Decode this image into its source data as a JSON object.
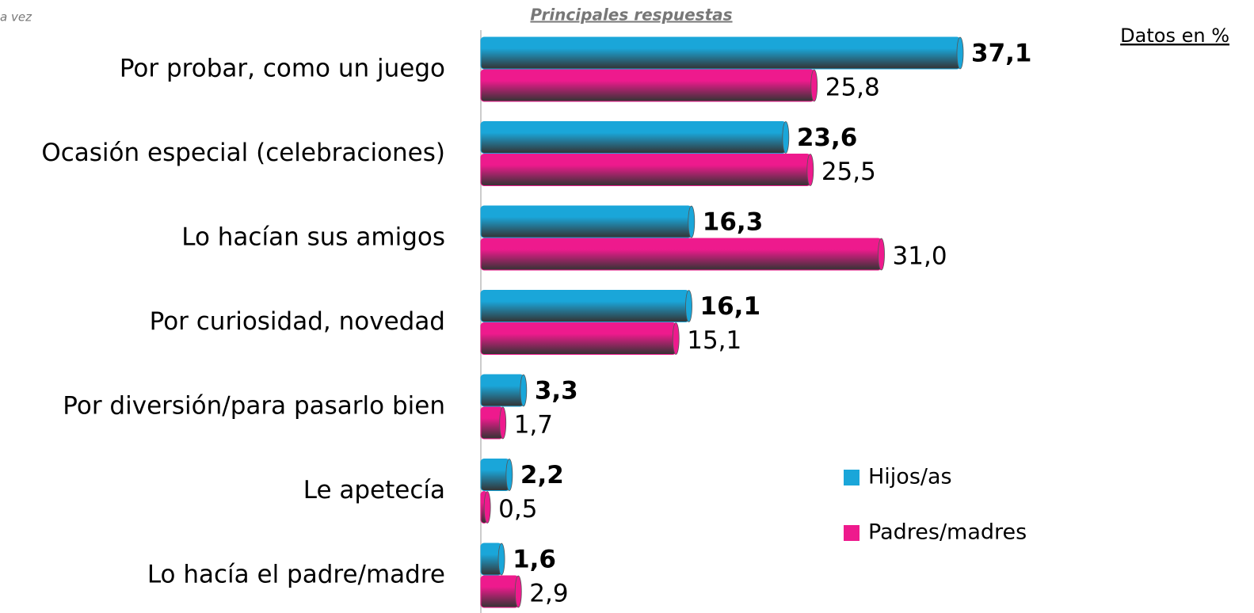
{
  "chart_data": {
    "type": "hbar",
    "header_fragment": "a vez",
    "title": "Principales respuestas",
    "note": "Datos en %",
    "categories": [
      "Por probar, como un juego",
      "Ocasión especial (celebraciones)",
      "Lo hacían sus amigos",
      "Por curiosidad, novedad",
      "Por diversión/para pasarlo bien",
      "Le apetecía",
      "Lo hacía el padre/madre"
    ],
    "series": [
      {
        "name": "Hijos/as",
        "color": "#1aa6d9",
        "values": [
          37.1,
          23.6,
          16.3,
          16.1,
          3.3,
          2.2,
          1.6
        ],
        "value_labels": [
          "37,1",
          "23,6",
          "16,3",
          "16,1",
          "3,3",
          "2,2",
          "1,6"
        ]
      },
      {
        "name": "Padres/madres",
        "color": "#ee1a8d",
        "values": [
          25.8,
          25.5,
          31.0,
          15.1,
          1.7,
          0.5,
          2.9
        ],
        "value_labels": [
          "25,8",
          "25,5",
          "31,0",
          "15,1",
          "1,7",
          "0,5",
          "2,9"
        ]
      }
    ]
  }
}
